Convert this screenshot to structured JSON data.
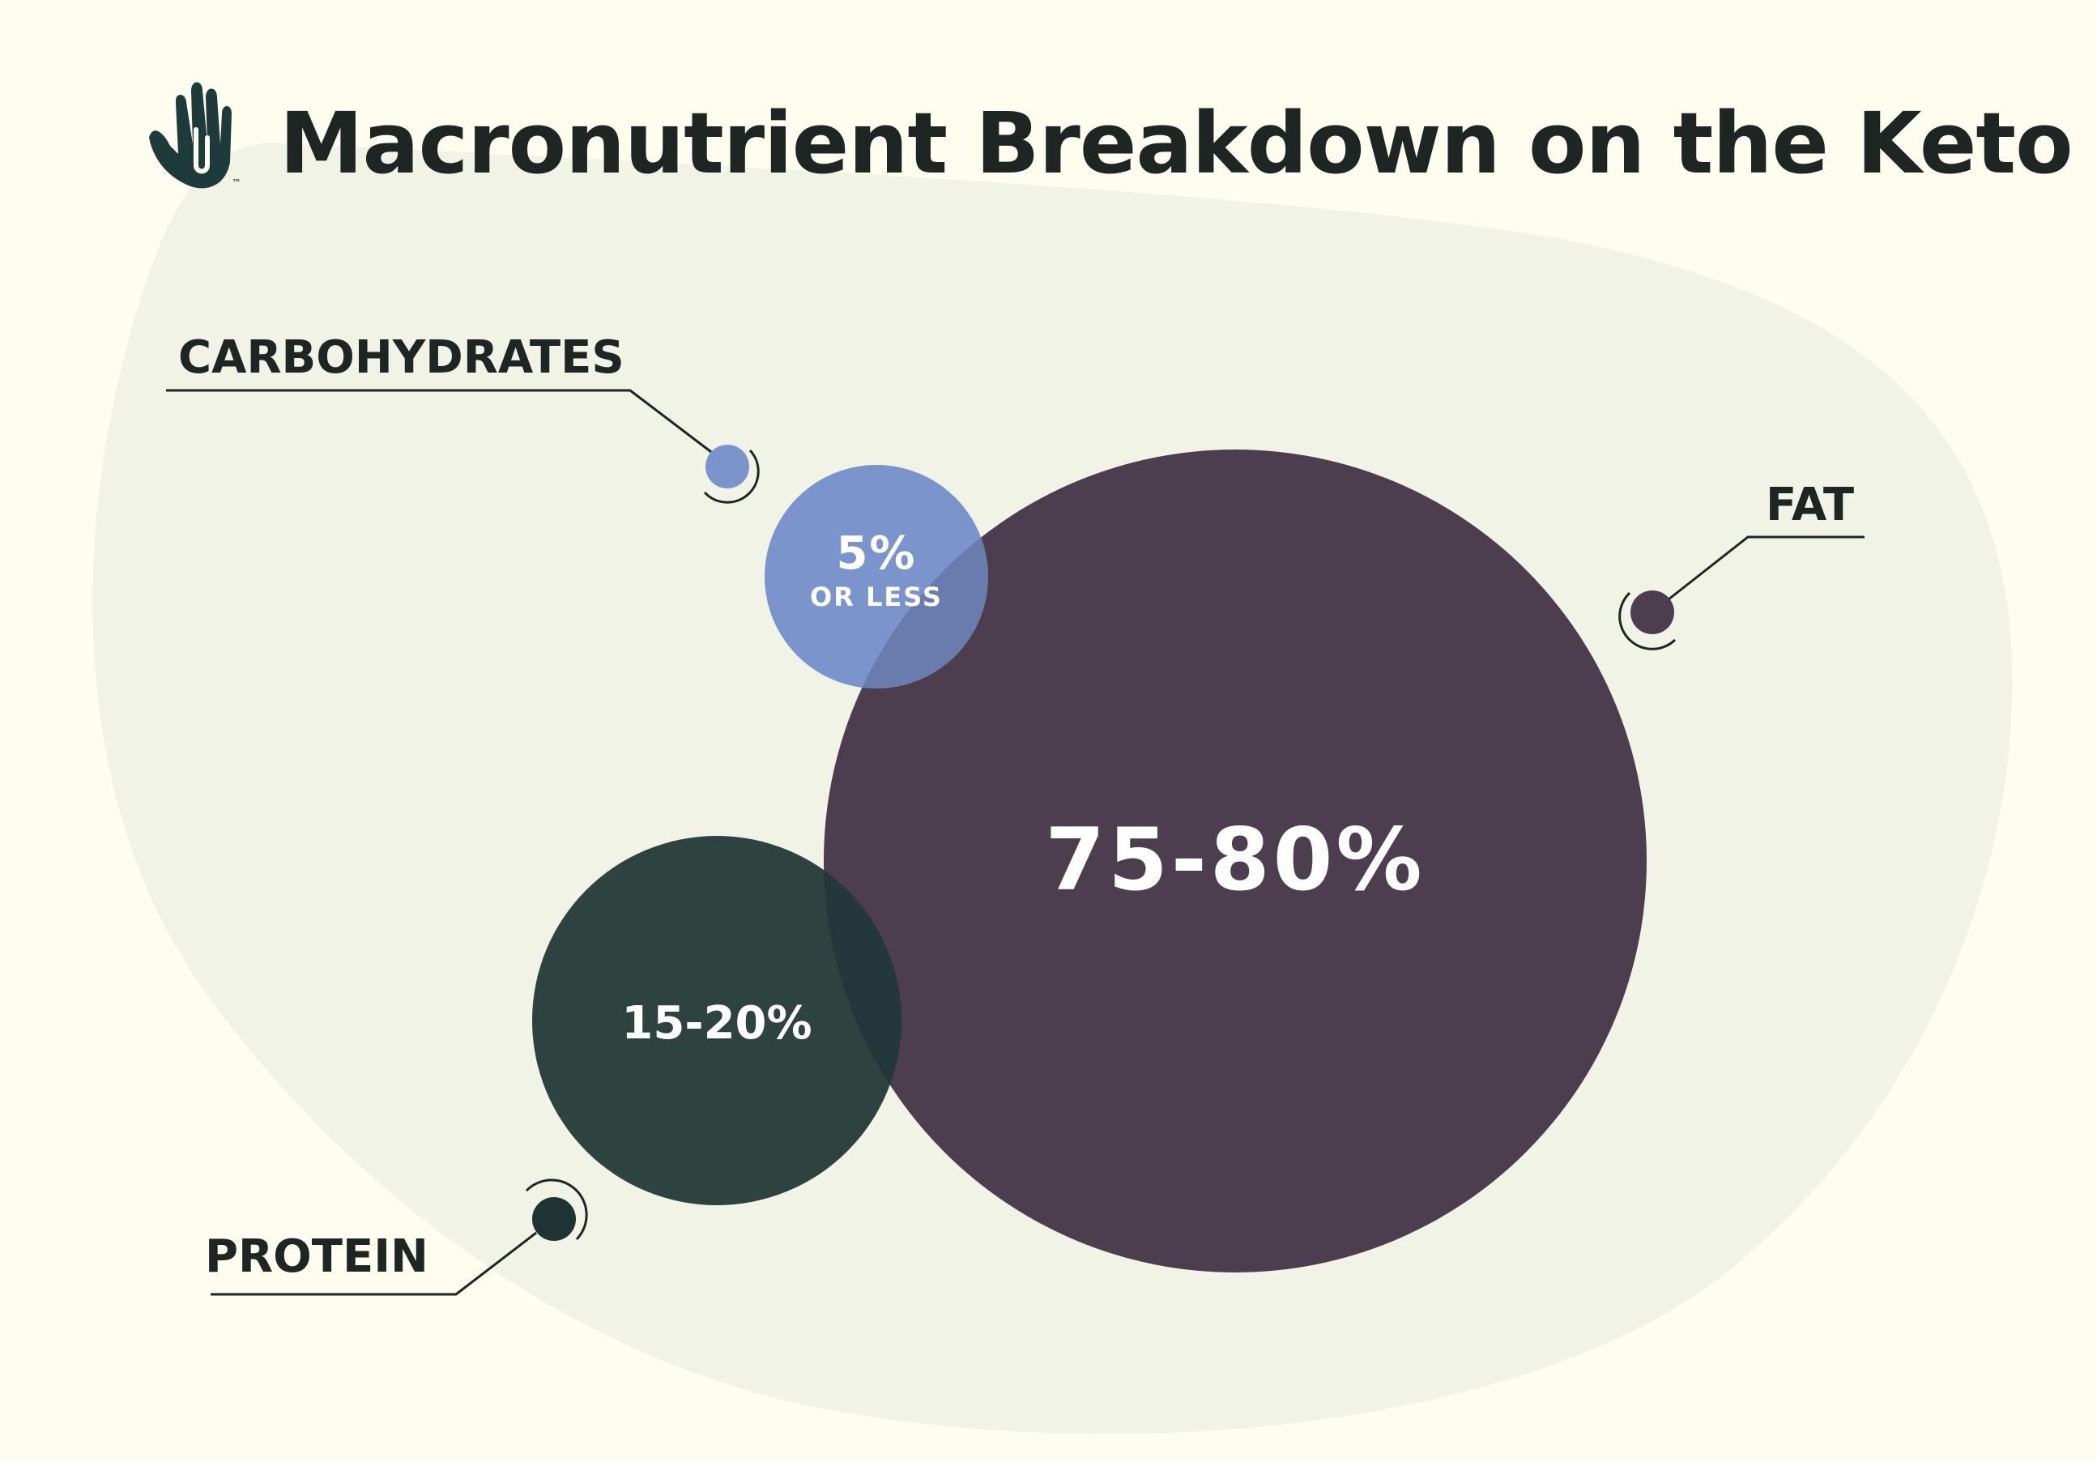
{
  "header": {
    "title": "Macronutrient Breakdown on the Keto Diet",
    "logo_icon": "hand-logo-icon",
    "trademark": "™"
  },
  "colors": {
    "page_background": "#fdfdf0",
    "blob_background": "#f1f3e6",
    "title_text": "#1f2523",
    "carbohydrates": "#7b95cc",
    "fat": "#4d3e4f",
    "protein": "#2e4340",
    "overlap_carb_fat": "#6a7bae",
    "overlap_protein_fat": "#24373a",
    "value_text": "#ffffff"
  },
  "chart_data": {
    "type": "bubble",
    "title": "Macronutrient Breakdown on the Keto Diet",
    "series": [
      {
        "name": "CARBOHYDRATES",
        "value_label": "5%",
        "sub_label": "OR LESS",
        "percent_min": 0,
        "percent_max": 5,
        "color": "#7b95cc"
      },
      {
        "name": "FAT",
        "value_label": "75-80%",
        "sub_label": "",
        "percent_min": 75,
        "percent_max": 80,
        "color": "#4d3e4f"
      },
      {
        "name": "PROTEIN",
        "value_label": "15-20%",
        "sub_label": "",
        "percent_min": 15,
        "percent_max": 20,
        "color": "#2e4340"
      }
    ]
  }
}
